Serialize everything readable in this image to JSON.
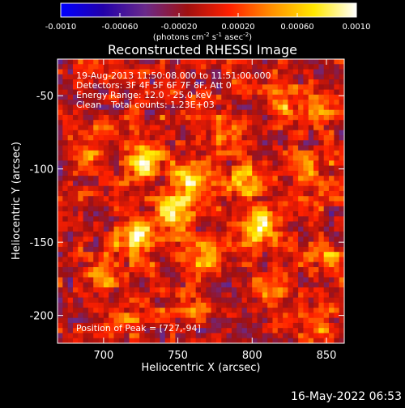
{
  "chart_data": {
    "type": "heatmap",
    "title": "Reconstructed RHESSI Image",
    "xlabel": "Heliocentric X (arcsec)",
    "ylabel": "Heliocentric Y (arcsec)",
    "xlim": [
      669,
      862
    ],
    "ylim": [
      -219,
      -25
    ],
    "x_ticks": [
      700,
      750,
      800,
      850
    ],
    "y_ticks": [
      -50,
      -100,
      -150,
      -200
    ],
    "annotations": [
      "19-Aug-2013 11:50:08.000 to 11:51:00.000",
      "Detectors: 3F 4F 5F 6F 7F 8F, Att 0",
      "Energy Range: 12.0 - 25.0 keV",
      "Clean",
      "Total counts: 1.23E+03",
      "Position of Peak = [727,-94]"
    ],
    "colorbar": {
      "range": [
        -0.001,
        0.001
      ],
      "tick_labels": [
        "-0.0010",
        "-0.00060",
        "-0.00020",
        "0.00020",
        "0.00060",
        "0.0010"
      ],
      "tick_values": [
        -0.001,
        -0.0006,
        -0.0002,
        0.0002,
        0.0006,
        0.001
      ],
      "unit_label": "(photons cm",
      "unit_sup1": "-2",
      "unit_mid1": " s",
      "unit_sup2": "-1",
      "unit_mid2": " asec",
      "unit_sup3": "-2",
      "unit_end": ")",
      "colors": [
        "#0000ff",
        "#2200aa",
        "#6a2a8a",
        "#a01010",
        "#ff2000",
        "#ff9000",
        "#ffe800",
        "#ffffff"
      ]
    },
    "sources": [
      {
        "x": 727,
        "y": -94,
        "peak": 0.001
      },
      {
        "x": 724,
        "y": -145,
        "peak": 0.0009
      },
      {
        "x": 758,
        "y": -108,
        "peak": 0.00085
      },
      {
        "x": 748,
        "y": -130,
        "peak": 0.0008
      },
      {
        "x": 805,
        "y": -140,
        "peak": 0.00078
      },
      {
        "x": 795,
        "y": -108,
        "peak": 0.0006
      },
      {
        "x": 768,
        "y": -160,
        "peak": 0.00055
      },
      {
        "x": 820,
        "y": -55,
        "peak": 0.0005
      },
      {
        "x": 700,
        "y": -170,
        "peak": 0.00045
      },
      {
        "x": 850,
        "y": -160,
        "peak": 0.0005
      },
      {
        "x": 780,
        "y": -75,
        "peak": 0.0004
      },
      {
        "x": 835,
        "y": -100,
        "peak": 0.00045
      },
      {
        "x": 715,
        "y": -205,
        "peak": 0.0004
      },
      {
        "x": 760,
        "y": -195,
        "peak": 0.0003
      },
      {
        "x": 690,
        "y": -90,
        "peak": 0.0003
      },
      {
        "x": 840,
        "y": -205,
        "peak": 0.00035
      },
      {
        "x": 810,
        "y": -185,
        "peak": 0.00025
      },
      {
        "x": 845,
        "y": -60,
        "peak": 0.00035
      }
    ]
  },
  "footer": {
    "date": "16-May-2022 06:53"
  }
}
